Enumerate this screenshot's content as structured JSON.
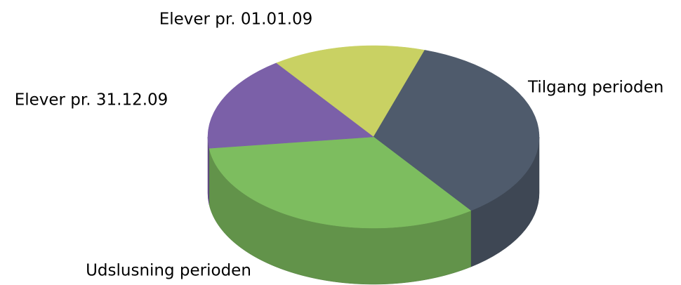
{
  "chart_data": {
    "type": "pie",
    "categories": [
      "Elever pr. 01.01.09",
      "Tilgang perioden",
      "Udslusning perioden",
      "Elever pr. 31.12.09"
    ],
    "values": [
      15,
      35,
      33,
      17
    ],
    "colors": [
      "#c9d163",
      "#4f5b6c",
      "#7dbd5f",
      "#7b60a8"
    ]
  }
}
